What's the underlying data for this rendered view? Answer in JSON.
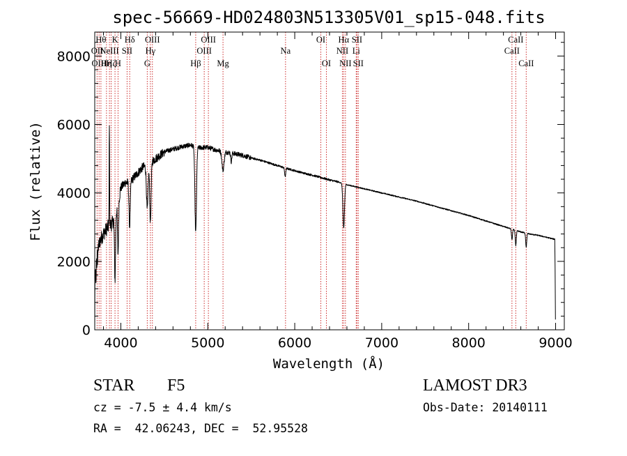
{
  "chart_data": {
    "type": "line",
    "title": "spec-56669-HD024803N513305V01_sp15-048.fits",
    "xlabel": "Wavelength (Å)",
    "ylabel": "Flux (relative)",
    "xlim": [
      3700,
      9100
    ],
    "ylim": [
      0,
      8700
    ],
    "x_ticks": [
      4000,
      5000,
      6000,
      7000,
      8000,
      9000
    ],
    "y_ticks": [
      0,
      2000,
      4000,
      6000,
      8000
    ],
    "continuum": [
      [
        3700,
        2000
      ],
      [
        3760,
        2600
      ],
      [
        3800,
        2800
      ],
      [
        3850,
        3000
      ],
      [
        3900,
        3100
      ],
      [
        3950,
        3500
      ],
      [
        4000,
        4150
      ],
      [
        4050,
        4300
      ],
      [
        4100,
        4300
      ],
      [
        4150,
        4450
      ],
      [
        4200,
        4600
      ],
      [
        4250,
        4750
      ],
      [
        4300,
        4800
      ],
      [
        4400,
        5000
      ],
      [
        4500,
        5200
      ],
      [
        4600,
        5280
      ],
      [
        4700,
        5350
      ],
      [
        4800,
        5400
      ],
      [
        4900,
        5320
      ],
      [
        5000,
        5330
      ],
      [
        5100,
        5250
      ],
      [
        5200,
        5200
      ],
      [
        5300,
        5150
      ],
      [
        5400,
        5100
      ],
      [
        5500,
        5020
      ],
      [
        5600,
        4960
      ],
      [
        5700,
        4880
      ],
      [
        5800,
        4800
      ],
      [
        5900,
        4720
      ],
      [
        6000,
        4650
      ],
      [
        6100,
        4580
      ],
      [
        6200,
        4520
      ],
      [
        6300,
        4450
      ],
      [
        6400,
        4380
      ],
      [
        6500,
        4320
      ],
      [
        6600,
        4240
      ],
      [
        6700,
        4180
      ],
      [
        6800,
        4120
      ],
      [
        7000,
        4000
      ],
      [
        7200,
        3880
      ],
      [
        7400,
        3760
      ],
      [
        7600,
        3620
      ],
      [
        7800,
        3480
      ],
      [
        8000,
        3340
      ],
      [
        8200,
        3180
      ],
      [
        8400,
        3020
      ],
      [
        8500,
        2940
      ],
      [
        8600,
        2860
      ],
      [
        8700,
        2800
      ],
      [
        8800,
        2760
      ],
      [
        8900,
        2700
      ],
      [
        8980,
        2650
      ]
    ],
    "absorption_features": [
      {
        "center": 3933,
        "depth": 1900,
        "width": 6
      },
      {
        "center": 3968,
        "depth": 1500,
        "width": 6
      },
      {
        "center": 4101,
        "depth": 1300,
        "width": 7
      },
      {
        "center": 4304,
        "depth": 1300,
        "width": 9
      },
      {
        "center": 4340,
        "depth": 1700,
        "width": 8
      },
      {
        "center": 4861,
        "depth": 2500,
        "width": 9
      },
      {
        "center": 5175,
        "depth": 550,
        "width": 12
      },
      {
        "center": 5270,
        "depth": 250,
        "width": 6
      },
      {
        "center": 5890,
        "depth": 260,
        "width": 6
      },
      {
        "center": 6563,
        "depth": 1300,
        "width": 9
      },
      {
        "center": 8498,
        "depth": 300,
        "width": 6
      },
      {
        "center": 8542,
        "depth": 450,
        "width": 6
      },
      {
        "center": 8662,
        "depth": 400,
        "width": 6
      }
    ],
    "spikes": [
      {
        "center": 3868,
        "height": 3100
      }
    ],
    "spectral_lines": [
      {
        "wavelength": 3727,
        "label": "OII",
        "row": 1
      },
      {
        "wavelength": 3750,
        "label": "OIII",
        "row": 2
      },
      {
        "wavelength": 3771,
        "label": "Hθ",
        "row": 0
      },
      {
        "wavelength": 3835,
        "label": "Hη",
        "row": 2
      },
      {
        "wavelength": 3869,
        "label": "NeIII",
        "row": 1
      },
      {
        "wavelength": 3889,
        "label": "Hζ",
        "row": 2
      },
      {
        "wavelength": 3933,
        "label": "K",
        "row": 0
      },
      {
        "wavelength": 3968,
        "label": "H",
        "row": 2
      },
      {
        "wavelength": 4072,
        "label": "SII",
        "row": 1
      },
      {
        "wavelength": 4102,
        "label": "Hδ",
        "row": 0
      },
      {
        "wavelength": 4304,
        "label": "G",
        "row": 2
      },
      {
        "wavelength": 4340,
        "label": "Hγ",
        "row": 1
      },
      {
        "wavelength": 4363,
        "label": "OIII",
        "row": 0
      },
      {
        "wavelength": 4861,
        "label": "Hβ",
        "row": 2
      },
      {
        "wavelength": 4959,
        "label": "OIII",
        "row": 1
      },
      {
        "wavelength": 5007,
        "label": "OIII",
        "row": 0
      },
      {
        "wavelength": 5175,
        "label": "Mg",
        "row": 2
      },
      {
        "wavelength": 5894,
        "label": "Na",
        "row": 1
      },
      {
        "wavelength": 6300,
        "label": "OI",
        "row": 0
      },
      {
        "wavelength": 6364,
        "label": "OI",
        "row": 2
      },
      {
        "wavelength": 6548,
        "label": "NII",
        "row": 1
      },
      {
        "wavelength": 6563,
        "label": "Hα",
        "row": 0
      },
      {
        "wavelength": 6583,
        "label": "NII",
        "row": 2
      },
      {
        "wavelength": 6707,
        "label": "Li",
        "row": 1
      },
      {
        "wavelength": 6716,
        "label": "SII",
        "row": 0
      },
      {
        "wavelength": 6731,
        "label": "SII",
        "row": 2
      },
      {
        "wavelength": 8498,
        "label": "CaII",
        "row": 1
      },
      {
        "wavelength": 8542,
        "label": "CaII",
        "row": 0
      },
      {
        "wavelength": 8662,
        "label": "CaII",
        "row": 2
      }
    ],
    "line_color": "#000000",
    "marker_color": "#cc2a2a"
  },
  "info": {
    "object_type": "STAR",
    "spectral_class": "F5",
    "survey": "LAMOST DR3",
    "redshift": "cz = -7.5 ± 4.4 km/s",
    "obs_date": "Obs-Date: 20140111",
    "coordinates": "RA =  42.06243, DEC =  52.95528"
  }
}
